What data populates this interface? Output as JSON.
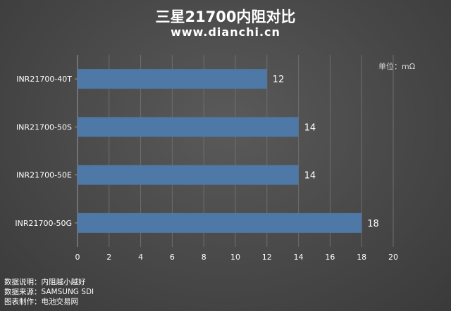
{
  "title": "三星21700内阻对比",
  "subtitle": "www.dianchi.cn",
  "unit": "单位：mΩ",
  "chart_data": {
    "type": "bar",
    "orientation": "horizontal",
    "categories": [
      "INR21700-40T",
      "INR21700-50S",
      "INR21700-50E",
      "INR21700-50G"
    ],
    "values": [
      12,
      14,
      14,
      18
    ],
    "xlim": [
      0,
      20
    ],
    "xticks": [
      0,
      2,
      4,
      6,
      8,
      10,
      12,
      14,
      16,
      18,
      20
    ],
    "bar_color": "#4e79a7",
    "grid": true
  },
  "notes": [
    {
      "label": "数据说明：",
      "value": "内阻越小越好"
    },
    {
      "label": "数据来源：",
      "value": "SAMSUNG SDI"
    },
    {
      "label": "图表制作：",
      "value": "电池交易网"
    }
  ]
}
